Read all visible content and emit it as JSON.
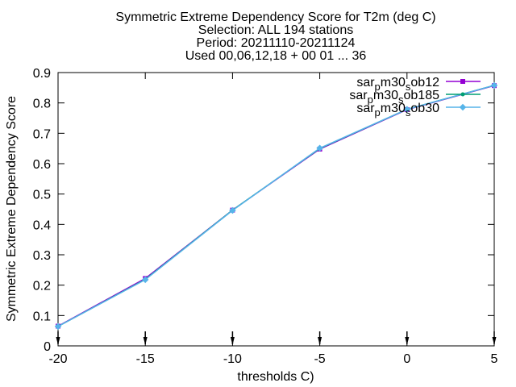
{
  "chart_data": {
    "type": "line",
    "title_lines": [
      "Symmetric Extreme Dependency Score  for T2m (deg C)",
      "Selection: ALL     194 stations",
      "Period: 20211110-20211124",
      "Used 00,06,12,18 + 00 01 ... 36"
    ],
    "xlabel": "thresholds C)",
    "ylabel": "Symmetric Extreme Dependency Score",
    "xlim": [
      -20,
      5
    ],
    "ylim": [
      0,
      0.9
    ],
    "xticks": [
      -20,
      -15,
      -10,
      -5,
      0,
      5
    ],
    "yticks": [
      0,
      0.1,
      0.2,
      0.3,
      0.4,
      0.5,
      0.6,
      0.7,
      0.8,
      0.9
    ],
    "xtick_labels": [
      "-20",
      "-15",
      "-10",
      "-5",
      "0",
      "5"
    ],
    "ytick_labels": [
      "0",
      "0.1",
      "0.2",
      "0.3",
      "0.4",
      "0.5",
      "0.6",
      "0.7",
      "0.8",
      "0.9"
    ],
    "legend_position": "top-right",
    "grid": false,
    "x": [
      -20,
      -15,
      -10,
      -5,
      0,
      5
    ],
    "series": [
      {
        "name": "sar_pm30_sob12",
        "name_parts": [
          "sar",
          "p",
          "m30",
          "s",
          "ob12"
        ],
        "color": "#9400d3",
        "values": [
          0.065,
          0.222,
          0.447,
          0.648,
          0.778,
          0.857
        ]
      },
      {
        "name": "sar_pm30_sob185",
        "name_parts": [
          "sar",
          "p",
          "m30",
          "s",
          "ob185"
        ],
        "color": "#009e73",
        "values": [
          0.064,
          0.219,
          0.447,
          0.65,
          0.779,
          0.858
        ]
      },
      {
        "name": "sar_pm30_sob30",
        "name_parts": [
          "sar",
          "p",
          "m30",
          "s",
          "ob30"
        ],
        "color": "#56b4e9",
        "values": [
          0.064,
          0.218,
          0.446,
          0.651,
          0.779,
          0.858
        ]
      }
    ]
  }
}
